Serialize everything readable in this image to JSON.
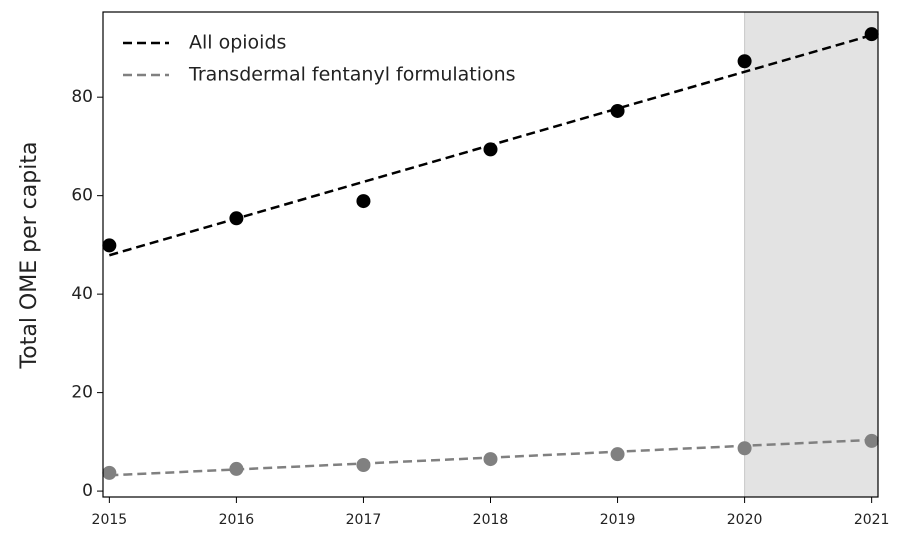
{
  "chart_data": {
    "type": "scatter",
    "y_label": "Total OME per capita",
    "x": [
      2015,
      2016,
      2017,
      2018,
      2019,
      2020,
      2021
    ],
    "series": [
      {
        "name": "All opioids",
        "color": "#000000",
        "values": [
          49.9,
          55.4,
          58.9,
          69.4,
          77.2,
          87.3,
          92.8
        ],
        "trend_values": [
          47.9,
          92.6
        ]
      },
      {
        "name": "Transdermal fentanyl formulations",
        "color": "#808080",
        "values": [
          3.7,
          4.5,
          5.3,
          6.5,
          7.5,
          8.7,
          10.2
        ],
        "trend_values": [
          3.2,
          10.4
        ]
      }
    ],
    "xlim": [
      2014.95,
      2021.05
    ],
    "xticks": [
      2015,
      2016,
      2017,
      2018,
      2019,
      2020,
      2021
    ],
    "ylim": [
      -1.2,
      97.3
    ],
    "yticks": [
      0,
      20,
      40,
      60,
      80
    ],
    "shaded_x": [
      2020,
      2021.05
    ],
    "shade_color": "#e3e3e3",
    "legend": "upper left",
    "grid": false
  }
}
